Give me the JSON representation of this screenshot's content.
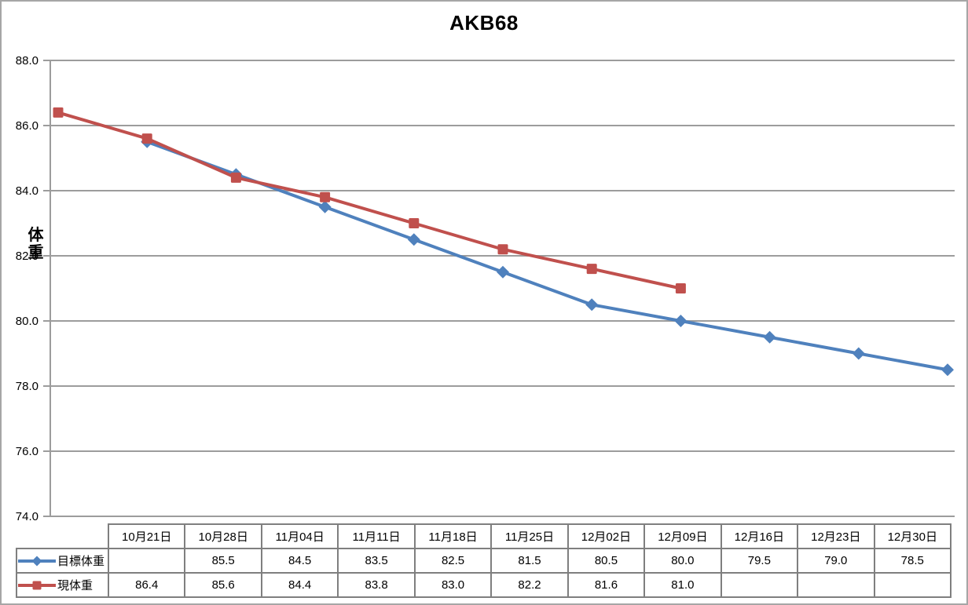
{
  "chart_data": {
    "type": "line",
    "title": "AKB68",
    "ylabel": "体重",
    "xlabel": "",
    "ylim": [
      74.0,
      88.0
    ],
    "yticks": [
      88,
      86,
      84,
      82,
      80,
      78,
      76,
      74
    ],
    "grid": true,
    "legend_position": "data-table-row-headers",
    "categories": [
      "10月21日",
      "10月28日",
      "11月04日",
      "11月11日",
      "11月18日",
      "11月25日",
      "12月02日",
      "12月09日",
      "12月16日",
      "12月23日",
      "12月30日"
    ],
    "series": [
      {
        "name": "目標体重",
        "slug": "target-weight",
        "marker": "diamond",
        "color": "#4F81BD",
        "values": [
          null,
          85.5,
          84.5,
          83.5,
          82.5,
          81.5,
          80.5,
          80.0,
          79.5,
          79.0,
          78.5
        ]
      },
      {
        "name": "現体重",
        "slug": "current-weight",
        "marker": "square",
        "color": "#C0504D",
        "values": [
          86.4,
          85.6,
          84.4,
          83.8,
          83.0,
          82.2,
          81.6,
          81.0,
          null,
          null,
          null
        ]
      }
    ]
  },
  "colors": {
    "grid": "#9C9C9C",
    "axis": "#9C9C9C",
    "table_border": "#7F7F7F",
    "figure_border": "#A6A6A6",
    "text": "#000000",
    "background": "#FFFFFF"
  }
}
